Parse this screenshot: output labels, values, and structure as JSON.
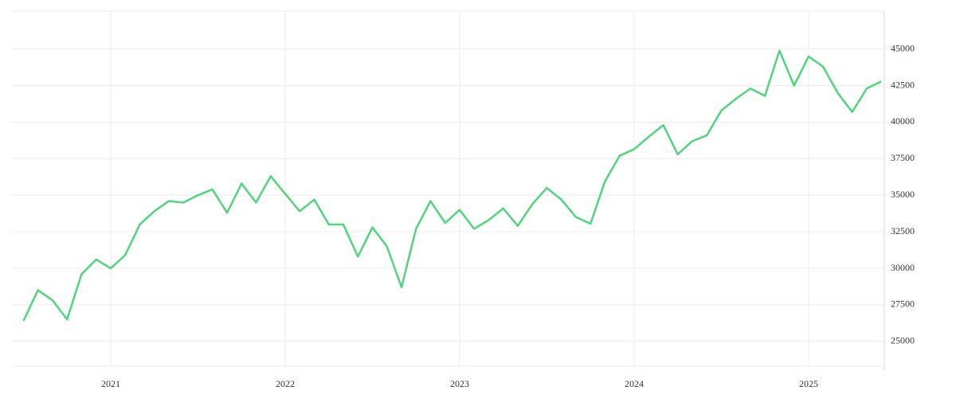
{
  "chart_data": {
    "type": "line",
    "x": [
      2020.5,
      2020.583,
      2020.667,
      2020.75,
      2020.833,
      2020.917,
      2021,
      2021.083,
      2021.167,
      2021.25,
      2021.333,
      2021.417,
      2021.5,
      2021.583,
      2021.667,
      2021.75,
      2021.833,
      2021.917,
      2022,
      2022.083,
      2022.167,
      2022.25,
      2022.333,
      2022.417,
      2022.5,
      2022.583,
      2022.667,
      2022.75,
      2022.833,
      2022.917,
      2023,
      2023.083,
      2023.167,
      2023.25,
      2023.333,
      2023.417,
      2023.5,
      2023.583,
      2023.667,
      2023.75,
      2023.833,
      2023.917,
      2024,
      2024.083,
      2024.167,
      2024.25,
      2024.333,
      2024.417,
      2024.5,
      2024.583,
      2024.667,
      2024.75,
      2024.833,
      2024.917,
      2025,
      2025.083,
      2025.167,
      2025.25,
      2025.333,
      2025.417
    ],
    "values": [
      26400,
      28500,
      27800,
      26500,
      29600,
      30600,
      30000,
      30900,
      33000,
      33900,
      34600,
      34500,
      35000,
      35400,
      33800,
      35800,
      34500,
      36300,
      35100,
      33900,
      34700,
      33000,
      33000,
      30800,
      32800,
      31500,
      28700,
      32700,
      34600,
      33100,
      34000,
      32700,
      33300,
      34100,
      32900,
      34400,
      35500,
      34700,
      33500,
      33050,
      35950,
      37700,
      38150,
      38990,
      39800,
      37800,
      38700,
      39100,
      40800,
      41600,
      42300,
      41800,
      44900,
      42500,
      44500,
      43800,
      42000,
      40700,
      42300,
      42800
    ],
    "color": "#4fd57c",
    "xlim": [
      2020.434,
      2025.434
    ],
    "xticks": [
      2021,
      2022,
      2023,
      2024,
      2025
    ],
    "ylim": [
      23300,
      47600
    ],
    "yticks": [
      25000,
      27500,
      30000,
      32500,
      35000,
      37500,
      40000,
      42500,
      45000
    ],
    "grid": true
  }
}
